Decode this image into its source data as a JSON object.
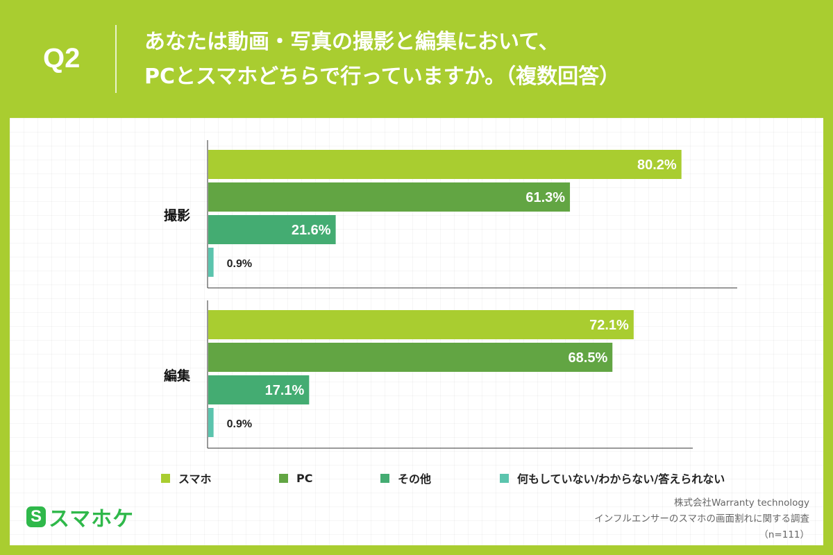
{
  "header": {
    "q_label": "Q2",
    "question_line1": "あなたは動画・写真の撮影と編集において、",
    "question_line2": "PCとスマホどちらで行っていますか。（複数回答）"
  },
  "chart_data": {
    "type": "bar",
    "orientation": "horizontal",
    "categories": [
      "撮影",
      "編集"
    ],
    "series": [
      {
        "name": "スマホ",
        "values": [
          80.2,
          72.1
        ],
        "labels": [
          "80.2%",
          "72.1%"
        ]
      },
      {
        "name": "PC",
        "values": [
          61.3,
          68.5
        ],
        "labels": [
          "61.3%",
          "68.5%"
        ]
      },
      {
        "name": "その他",
        "values": [
          21.6,
          17.1
        ],
        "labels": [
          "21.6%",
          "17.1%"
        ]
      },
      {
        "name": "何もしていない/わからない/答えられない",
        "values": [
          0.9,
          0.9
        ],
        "labels": [
          "0.9%",
          "0.9%"
        ]
      }
    ],
    "value_unit": "%",
    "xlim": [
      0,
      100
    ],
    "legend_position": "bottom",
    "grid": false
  },
  "colors": {
    "background": "#a9cd30",
    "series": [
      "#a9cd30",
      "#62a543",
      "#44ac72",
      "#5bc4ad"
    ]
  },
  "footer": {
    "logo_icon": "S",
    "logo_text": "スマホケ",
    "source_line1": "株式会社Warranty technology",
    "source_line2": "インフルエンサーのスマホの画面割れに関する調査",
    "source_line3": "（n=111）"
  }
}
